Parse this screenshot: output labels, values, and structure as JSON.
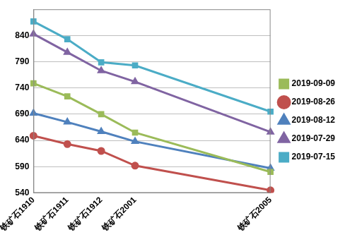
{
  "chart_data": {
    "type": "line",
    "categories": [
      "铁矿石1910",
      "铁矿石1911",
      "铁矿石1912",
      "铁矿石2001",
      null,
      null,
      null,
      "铁矿石2005"
    ],
    "series": [
      {
        "name": "2019-09-09",
        "color": "#9bbb59",
        "marker": "square",
        "values": [
          749,
          724,
          690,
          655,
          null,
          null,
          null,
          580
        ]
      },
      {
        "name": "2019-08-26",
        "color": "#c0504d",
        "marker": "circle",
        "values": [
          649,
          633,
          620,
          592,
          null,
          null,
          null,
          545
        ]
      },
      {
        "name": "2019-08-12",
        "color": "#4f81bd",
        "marker": "triangle",
        "values": [
          692,
          675,
          657,
          638,
          null,
          null,
          null,
          587
        ]
      },
      {
        "name": "2019-07-29",
        "color": "#8064a2",
        "marker": "triangle",
        "values": [
          843,
          808,
          773,
          752,
          null,
          null,
          null,
          656
        ]
      },
      {
        "name": "2019-07-15",
        "color": "#4bacc6",
        "marker": "square",
        "values": [
          867,
          833,
          789,
          783,
          null,
          null,
          null,
          695
        ]
      }
    ],
    "ylim": [
      540,
      890
    ],
    "yticks": [
      540,
      590,
      640,
      690,
      740,
      790,
      840
    ],
    "grid": true,
    "legend": "right"
  }
}
